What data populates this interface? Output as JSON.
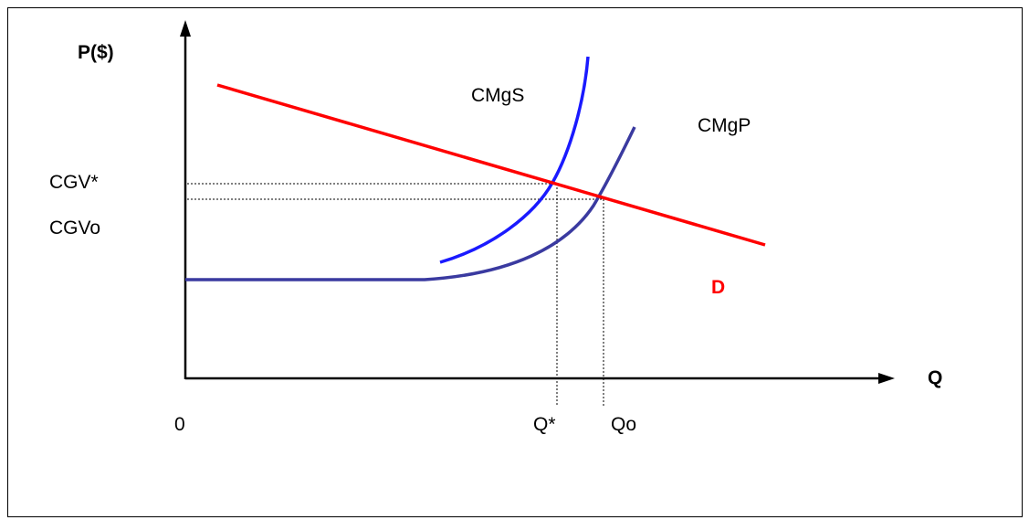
{
  "labels": {
    "y_axis": "P($)",
    "x_axis": "Q",
    "origin": "0",
    "cgv_star": "CGV*",
    "cgv_o": "CGVo",
    "q_star": "Q*",
    "q_o": "Qo",
    "social_cost_curve": "CMgS",
    "private_cost_curve": "CMgP",
    "demand_curve": "D"
  },
  "colors": {
    "axes": "#000000",
    "demand": "#ff0000",
    "social_cost": "#1a1aff",
    "private_cost": "#3a3aa0",
    "guides": "#000000"
  }
}
